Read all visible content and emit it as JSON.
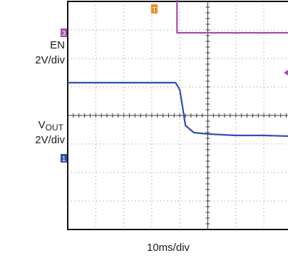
{
  "chart_data": {
    "type": "line",
    "title": "",
    "time_scale_label": "10ms/div",
    "grid": true,
    "x_divisions": 10,
    "y_divisions": 8,
    "trigger_marker": "T",
    "channels": [
      {
        "name": "EN",
        "scale_label": "2V/div",
        "marker": "3",
        "color": "#a050a8",
        "zero_div": 6.9,
        "x_div": [
          0,
          3.9,
          3.9,
          10
        ],
        "y_div": [
          8.1,
          8.1,
          6.9,
          6.9
        ]
      },
      {
        "name": "V",
        "name_subscript": "OUT",
        "scale_label": "2V/div",
        "marker": "1",
        "color": "#2e4fb0",
        "zero_div": 2.5,
        "x_div": [
          0,
          1.0,
          2.0,
          3.0,
          3.85,
          4.0,
          4.1,
          4.2,
          4.5,
          5.0,
          6.0,
          7.0,
          8.0,
          9.0,
          10
        ],
        "y_div": [
          5.15,
          5.15,
          5.15,
          5.15,
          5.15,
          4.9,
          4.3,
          3.65,
          3.4,
          3.35,
          3.3,
          3.3,
          3.27,
          3.25,
          3.25
        ]
      }
    ]
  }
}
